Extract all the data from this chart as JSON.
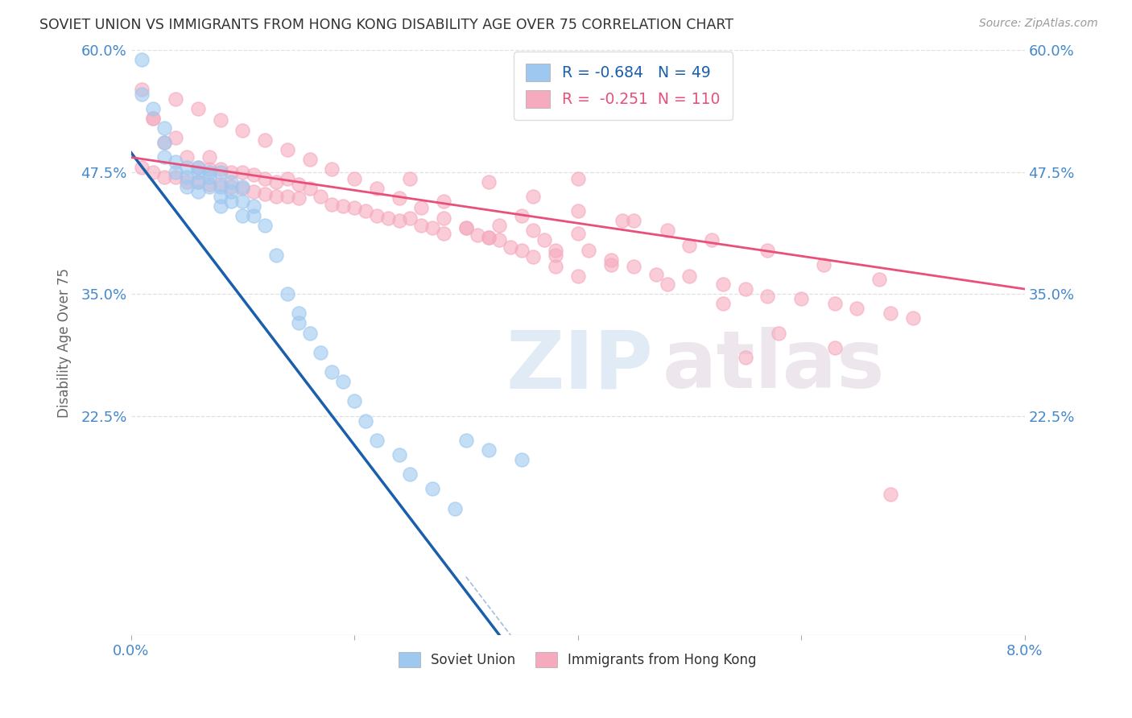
{
  "title": "SOVIET UNION VS IMMIGRANTS FROM HONG KONG DISABILITY AGE OVER 75 CORRELATION CHART",
  "source": "Source: ZipAtlas.com",
  "ylabel": "Disability Age Over 75",
  "xmin": 0.0,
  "xmax": 0.08,
  "ymin": 0.0,
  "ymax": 0.6,
  "yticks": [
    0.225,
    0.35,
    0.475,
    0.6
  ],
  "ytick_labels": [
    "22.5%",
    "35.0%",
    "47.5%",
    "60.0%"
  ],
  "xticks": [
    0.0,
    0.02,
    0.04,
    0.06,
    0.08
  ],
  "xtick_labels_show": [
    "0.0%",
    "8.0%"
  ],
  "soviet_R": -0.684,
  "soviet_N": 49,
  "hk_R": -0.251,
  "hk_N": 110,
  "soviet_color": "#9EC8F0",
  "hk_color": "#F5AABE",
  "soviet_line_color": "#1A5FAB",
  "hk_line_color": "#E8507A",
  "legend_label_soviet": "Soviet Union",
  "legend_label_hk": "Immigrants from Hong Kong",
  "watermark_zip": "ZIP",
  "watermark_atlas": "atlas",
  "background_color": "#FFFFFF",
  "grid_color": "#DDDDDD",
  "title_color": "#333333",
  "axis_label_color": "#4488CC",
  "soviet_line_x0": 0.0,
  "soviet_line_y0": 0.495,
  "soviet_line_x1": 0.033,
  "soviet_line_y1": 0.0,
  "hk_line_x0": 0.0,
  "hk_line_y0": 0.49,
  "hk_line_x1": 0.08,
  "hk_line_y1": 0.355,
  "soviet_x": [
    0.001,
    0.001,
    0.002,
    0.003,
    0.003,
    0.003,
    0.004,
    0.004,
    0.005,
    0.005,
    0.005,
    0.006,
    0.006,
    0.006,
    0.006,
    0.007,
    0.007,
    0.007,
    0.008,
    0.008,
    0.008,
    0.008,
    0.009,
    0.009,
    0.009,
    0.01,
    0.01,
    0.01,
    0.011,
    0.011,
    0.012,
    0.013,
    0.014,
    0.015,
    0.015,
    0.016,
    0.017,
    0.018,
    0.019,
    0.02,
    0.021,
    0.022,
    0.024,
    0.025,
    0.027,
    0.029,
    0.03,
    0.032,
    0.035
  ],
  "soviet_y": [
    0.59,
    0.555,
    0.54,
    0.52,
    0.505,
    0.49,
    0.485,
    0.475,
    0.48,
    0.47,
    0.46,
    0.48,
    0.475,
    0.465,
    0.455,
    0.475,
    0.47,
    0.46,
    0.475,
    0.46,
    0.45,
    0.44,
    0.465,
    0.455,
    0.445,
    0.46,
    0.445,
    0.43,
    0.44,
    0.43,
    0.42,
    0.39,
    0.35,
    0.33,
    0.32,
    0.31,
    0.29,
    0.27,
    0.26,
    0.24,
    0.22,
    0.2,
    0.185,
    0.165,
    0.15,
    0.13,
    0.2,
    0.19,
    0.18
  ],
  "hk_x": [
    0.001,
    0.001,
    0.002,
    0.002,
    0.003,
    0.003,
    0.004,
    0.004,
    0.005,
    0.005,
    0.006,
    0.006,
    0.007,
    0.007,
    0.007,
    0.008,
    0.008,
    0.009,
    0.009,
    0.01,
    0.01,
    0.011,
    0.011,
    0.012,
    0.012,
    0.013,
    0.013,
    0.014,
    0.014,
    0.015,
    0.015,
    0.016,
    0.017,
    0.018,
    0.019,
    0.02,
    0.021,
    0.022,
    0.023,
    0.024,
    0.025,
    0.026,
    0.027,
    0.028,
    0.03,
    0.031,
    0.032,
    0.033,
    0.035,
    0.036,
    0.037,
    0.038,
    0.04,
    0.041,
    0.043,
    0.045,
    0.047,
    0.05,
    0.053,
    0.055,
    0.057,
    0.06,
    0.063,
    0.065,
    0.068,
    0.07,
    0.045,
    0.05,
    0.055,
    0.04,
    0.035,
    0.025,
    0.028,
    0.033,
    0.038,
    0.043,
    0.048,
    0.053,
    0.058,
    0.063,
    0.068,
    0.032,
    0.036,
    0.04,
    0.044,
    0.048,
    0.052,
    0.057,
    0.062,
    0.067,
    0.002,
    0.004,
    0.006,
    0.008,
    0.01,
    0.012,
    0.014,
    0.016,
    0.018,
    0.02,
    0.022,
    0.024,
    0.026,
    0.028,
    0.03,
    0.032,
    0.034,
    0.036,
    0.038,
    0.04
  ],
  "hk_y": [
    0.56,
    0.48,
    0.53,
    0.475,
    0.505,
    0.47,
    0.51,
    0.47,
    0.49,
    0.465,
    0.48,
    0.465,
    0.49,
    0.478,
    0.462,
    0.478,
    0.462,
    0.475,
    0.46,
    0.475,
    0.458,
    0.472,
    0.455,
    0.468,
    0.452,
    0.465,
    0.45,
    0.468,
    0.45,
    0.462,
    0.448,
    0.458,
    0.45,
    0.442,
    0.44,
    0.438,
    0.435,
    0.43,
    0.428,
    0.425,
    0.428,
    0.42,
    0.418,
    0.412,
    0.418,
    0.41,
    0.408,
    0.405,
    0.395,
    0.415,
    0.405,
    0.39,
    0.412,
    0.395,
    0.385,
    0.378,
    0.37,
    0.368,
    0.36,
    0.355,
    0.348,
    0.345,
    0.34,
    0.335,
    0.33,
    0.325,
    0.425,
    0.4,
    0.285,
    0.468,
    0.43,
    0.468,
    0.445,
    0.42,
    0.395,
    0.38,
    0.36,
    0.34,
    0.31,
    0.295,
    0.145,
    0.465,
    0.45,
    0.435,
    0.425,
    0.415,
    0.405,
    0.395,
    0.38,
    0.365,
    0.53,
    0.55,
    0.54,
    0.528,
    0.518,
    0.508,
    0.498,
    0.488,
    0.478,
    0.468,
    0.458,
    0.448,
    0.438,
    0.428,
    0.418,
    0.408,
    0.398,
    0.388,
    0.378,
    0.368
  ]
}
